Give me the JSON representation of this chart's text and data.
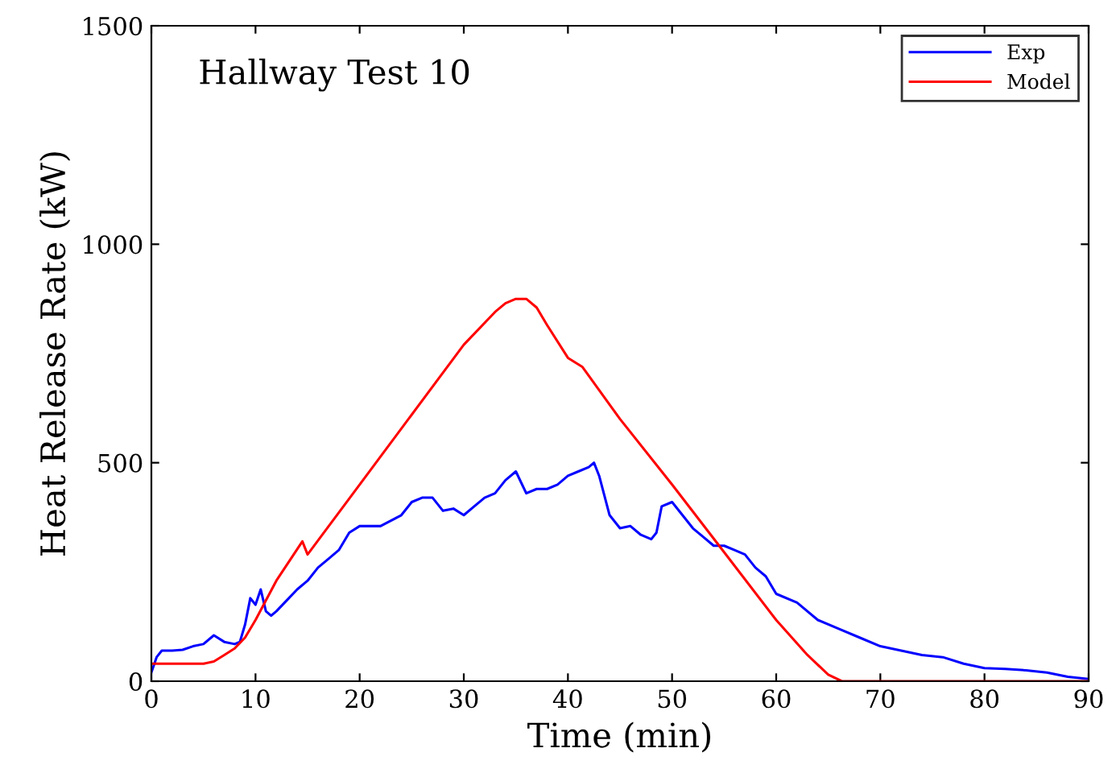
{
  "chart_data": {
    "type": "line",
    "annotations": [
      "Hallway Test 10"
    ],
    "xlabel": "Time (min)",
    "ylabel": "Heat Release Rate (kW)",
    "xlim": [
      0,
      90
    ],
    "ylim": [
      0,
      1500
    ],
    "xticks": [
      0,
      10,
      20,
      30,
      40,
      50,
      60,
      70,
      80,
      90
    ],
    "yticks": [
      0,
      500,
      1000,
      1500
    ],
    "legend": "top right",
    "grid": false,
    "series": [
      {
        "name": "Exp",
        "color": "#0000ff",
        "x": [
          0,
          0.5,
          1,
          2,
          3,
          4,
          5,
          6,
          7,
          8,
          8.5,
          9,
          9.5,
          10,
          10.5,
          11,
          11.5,
          12,
          13,
          14,
          15,
          16,
          17,
          18,
          19,
          20,
          22,
          24,
          25,
          26,
          27,
          28,
          29,
          30,
          31,
          32,
          33,
          34,
          35,
          36,
          37,
          38,
          39,
          40,
          41,
          42,
          42.5,
          43,
          44,
          45,
          46,
          47,
          48,
          48.5,
          49,
          50,
          51,
          52,
          53,
          54,
          55,
          56,
          57,
          58,
          59,
          60,
          62,
          64,
          66,
          68,
          70,
          72,
          74,
          76,
          78,
          80,
          82,
          84,
          86,
          88,
          90
        ],
        "values": [
          20,
          55,
          70,
          70,
          72,
          80,
          85,
          105,
          90,
          85,
          90,
          130,
          190,
          175,
          210,
          160,
          150,
          160,
          185,
          210,
          230,
          260,
          280,
          300,
          340,
          355,
          355,
          380,
          410,
          420,
          420,
          390,
          395,
          380,
          400,
          420,
          430,
          460,
          480,
          430,
          440,
          440,
          450,
          470,
          480,
          490,
          500,
          470,
          380,
          350,
          355,
          335,
          325,
          340,
          400,
          410,
          380,
          350,
          330,
          310,
          310,
          300,
          290,
          260,
          240,
          200,
          180,
          140,
          120,
          100,
          80,
          70,
          60,
          55,
          40,
          30,
          28,
          25,
          20,
          10,
          5
        ]
      },
      {
        "name": "Model",
        "color": "#ff0000",
        "x": [
          0,
          1,
          3,
          5,
          6,
          7,
          8,
          9,
          10,
          12,
          14.5,
          15,
          20,
          25,
          30,
          33,
          34,
          35,
          36,
          37,
          38,
          40,
          41.4,
          45,
          50,
          54.3,
          60,
          63,
          65,
          66.3,
          68,
          70,
          80,
          90
        ],
        "values": [
          40,
          40,
          40,
          40,
          45,
          60,
          75,
          100,
          140,
          230,
          320,
          290,
          450,
          610,
          770,
          845,
          865,
          875,
          875,
          855,
          815,
          740,
          719,
          600,
          450,
          317,
          140,
          60,
          15,
          0,
          0,
          0,
          0,
          0
        ]
      }
    ]
  }
}
